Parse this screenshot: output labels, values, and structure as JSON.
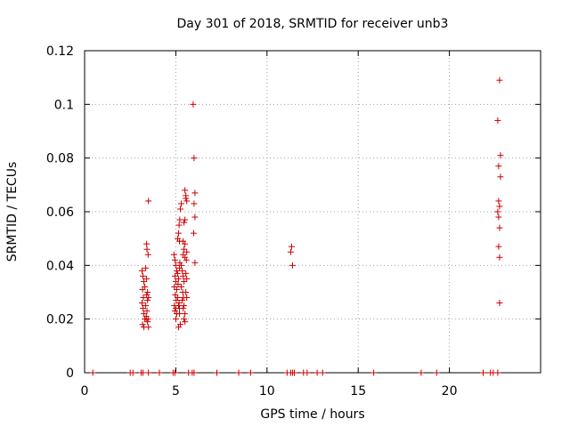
{
  "chart_data": {
    "type": "scatter",
    "title": "Day 301 of 2018, SRMTID for receiver unb3",
    "xlabel": "GPS time / hours",
    "ylabel": "SRMTID / TECUs",
    "xlim": [
      0,
      25
    ],
    "ylim": [
      0,
      0.12
    ],
    "grid": true,
    "marker": "+",
    "color": "#cc0000",
    "x_ticks": [
      0,
      5,
      10,
      15,
      20
    ],
    "x_tick_labels": [
      "0",
      "5",
      "10",
      "15",
      "20"
    ],
    "y_ticks": [
      0,
      0.02,
      0.04,
      0.06,
      0.08,
      0.1,
      0.12
    ],
    "y_tick_labels": [
      "0",
      "0.02",
      "0.04",
      "0.06",
      "0.08",
      "0.1",
      "0.12"
    ],
    "series": [
      {
        "name": "SRMTID",
        "points": [
          [
            0.45,
            0.0
          ],
          [
            2.5,
            0.0
          ],
          [
            2.65,
            0.0
          ],
          [
            3.1,
            0.0
          ],
          [
            3.2,
            0.0
          ],
          [
            3.5,
            0.0
          ],
          [
            4.1,
            0.0
          ],
          [
            4.85,
            0.0
          ],
          [
            4.95,
            0.0
          ],
          [
            5.7,
            0.0
          ],
          [
            5.9,
            0.0
          ],
          [
            6.0,
            0.0
          ],
          [
            7.25,
            0.0
          ],
          [
            8.45,
            0.0
          ],
          [
            9.1,
            0.0
          ],
          [
            11.1,
            0.0
          ],
          [
            11.3,
            0.0
          ],
          [
            11.4,
            0.0
          ],
          [
            11.5,
            0.0
          ],
          [
            12.0,
            0.0
          ],
          [
            12.2,
            0.0
          ],
          [
            12.75,
            0.0
          ],
          [
            13.05,
            0.0
          ],
          [
            15.85,
            0.0
          ],
          [
            18.45,
            0.0
          ],
          [
            19.3,
            0.0
          ],
          [
            21.85,
            0.0
          ],
          [
            22.25,
            0.0
          ],
          [
            22.4,
            0.0
          ],
          [
            22.65,
            0.0
          ],
          [
            3.15,
            0.038
          ],
          [
            3.2,
            0.036
          ],
          [
            3.25,
            0.034
          ],
          [
            3.18,
            0.031
          ],
          [
            3.22,
            0.028
          ],
          [
            3.15,
            0.026
          ],
          [
            3.2,
            0.024
          ],
          [
            3.25,
            0.022
          ],
          [
            3.3,
            0.02
          ],
          [
            3.18,
            0.018
          ],
          [
            3.25,
            0.017
          ],
          [
            3.35,
            0.039
          ],
          [
            3.4,
            0.035
          ],
          [
            3.3,
            0.032
          ],
          [
            3.4,
            0.029
          ],
          [
            3.45,
            0.027
          ],
          [
            3.35,
            0.025
          ],
          [
            3.42,
            0.023
          ],
          [
            3.38,
            0.021
          ],
          [
            3.45,
            0.019
          ],
          [
            3.5,
            0.017
          ],
          [
            3.45,
            0.03
          ],
          [
            3.5,
            0.028
          ],
          [
            3.38,
            0.02
          ],
          [
            3.48,
            0.02
          ],
          [
            3.4,
            0.048
          ],
          [
            3.42,
            0.046
          ],
          [
            3.48,
            0.044
          ],
          [
            3.5,
            0.064
          ],
          [
            4.9,
            0.044
          ],
          [
            4.95,
            0.042
          ],
          [
            5.0,
            0.04
          ],
          [
            5.05,
            0.038
          ],
          [
            4.95,
            0.036
          ],
          [
            5.0,
            0.034
          ],
          [
            4.92,
            0.032
          ],
          [
            5.05,
            0.031
          ],
          [
            4.97,
            0.029
          ],
          [
            5.02,
            0.027
          ],
          [
            4.92,
            0.025
          ],
          [
            5.0,
            0.024
          ],
          [
            4.95,
            0.023
          ],
          [
            5.05,
            0.022
          ],
          [
            5.0,
            0.02
          ],
          [
            5.1,
            0.037
          ],
          [
            5.15,
            0.035
          ],
          [
            5.12,
            0.033
          ],
          [
            5.2,
            0.039
          ],
          [
            5.22,
            0.041
          ],
          [
            5.1,
            0.028
          ],
          [
            5.18,
            0.026
          ],
          [
            5.15,
            0.025
          ],
          [
            5.2,
            0.024
          ],
          [
            5.2,
            0.022
          ],
          [
            5.25,
            0.018
          ],
          [
            5.15,
            0.017
          ],
          [
            5.1,
            0.05
          ],
          [
            5.15,
            0.052
          ],
          [
            5.2,
            0.049
          ],
          [
            5.18,
            0.055
          ],
          [
            5.22,
            0.057
          ],
          [
            5.25,
            0.061
          ],
          [
            5.3,
            0.063
          ],
          [
            5.3,
            0.04
          ],
          [
            5.35,
            0.038
          ],
          [
            5.4,
            0.036
          ],
          [
            5.45,
            0.034
          ],
          [
            5.3,
            0.032
          ],
          [
            5.38,
            0.03
          ],
          [
            5.42,
            0.028
          ],
          [
            5.35,
            0.027
          ],
          [
            5.45,
            0.025
          ],
          [
            5.4,
            0.024
          ],
          [
            5.5,
            0.022
          ],
          [
            5.45,
            0.02
          ],
          [
            5.4,
            0.044
          ],
          [
            5.45,
            0.046
          ],
          [
            5.5,
            0.043
          ],
          [
            5.4,
            0.049
          ],
          [
            5.5,
            0.048
          ],
          [
            5.45,
            0.056
          ],
          [
            5.5,
            0.057
          ],
          [
            5.55,
            0.065
          ],
          [
            5.5,
            0.068
          ],
          [
            5.55,
            0.066
          ],
          [
            5.6,
            0.064
          ],
          [
            5.55,
            0.037
          ],
          [
            5.6,
            0.035
          ],
          [
            5.55,
            0.03
          ],
          [
            5.6,
            0.028
          ],
          [
            5.5,
            0.019
          ],
          [
            5.6,
            0.045
          ],
          [
            5.58,
            0.042
          ],
          [
            5.95,
            0.1
          ],
          [
            6.0,
            0.08
          ],
          [
            6.05,
            0.067
          ],
          [
            6.0,
            0.063
          ],
          [
            6.05,
            0.058
          ],
          [
            5.98,
            0.052
          ],
          [
            6.05,
            0.041
          ],
          [
            11.35,
            0.047
          ],
          [
            11.3,
            0.045
          ],
          [
            11.4,
            0.04
          ],
          [
            22.75,
            0.109
          ],
          [
            22.65,
            0.094
          ],
          [
            22.8,
            0.081
          ],
          [
            22.7,
            0.077
          ],
          [
            22.8,
            0.073
          ],
          [
            22.7,
            0.064
          ],
          [
            22.75,
            0.062
          ],
          [
            22.65,
            0.06
          ],
          [
            22.7,
            0.058
          ],
          [
            22.75,
            0.054
          ],
          [
            22.7,
            0.047
          ],
          [
            22.75,
            0.043
          ],
          [
            22.75,
            0.026
          ]
        ]
      }
    ]
  }
}
